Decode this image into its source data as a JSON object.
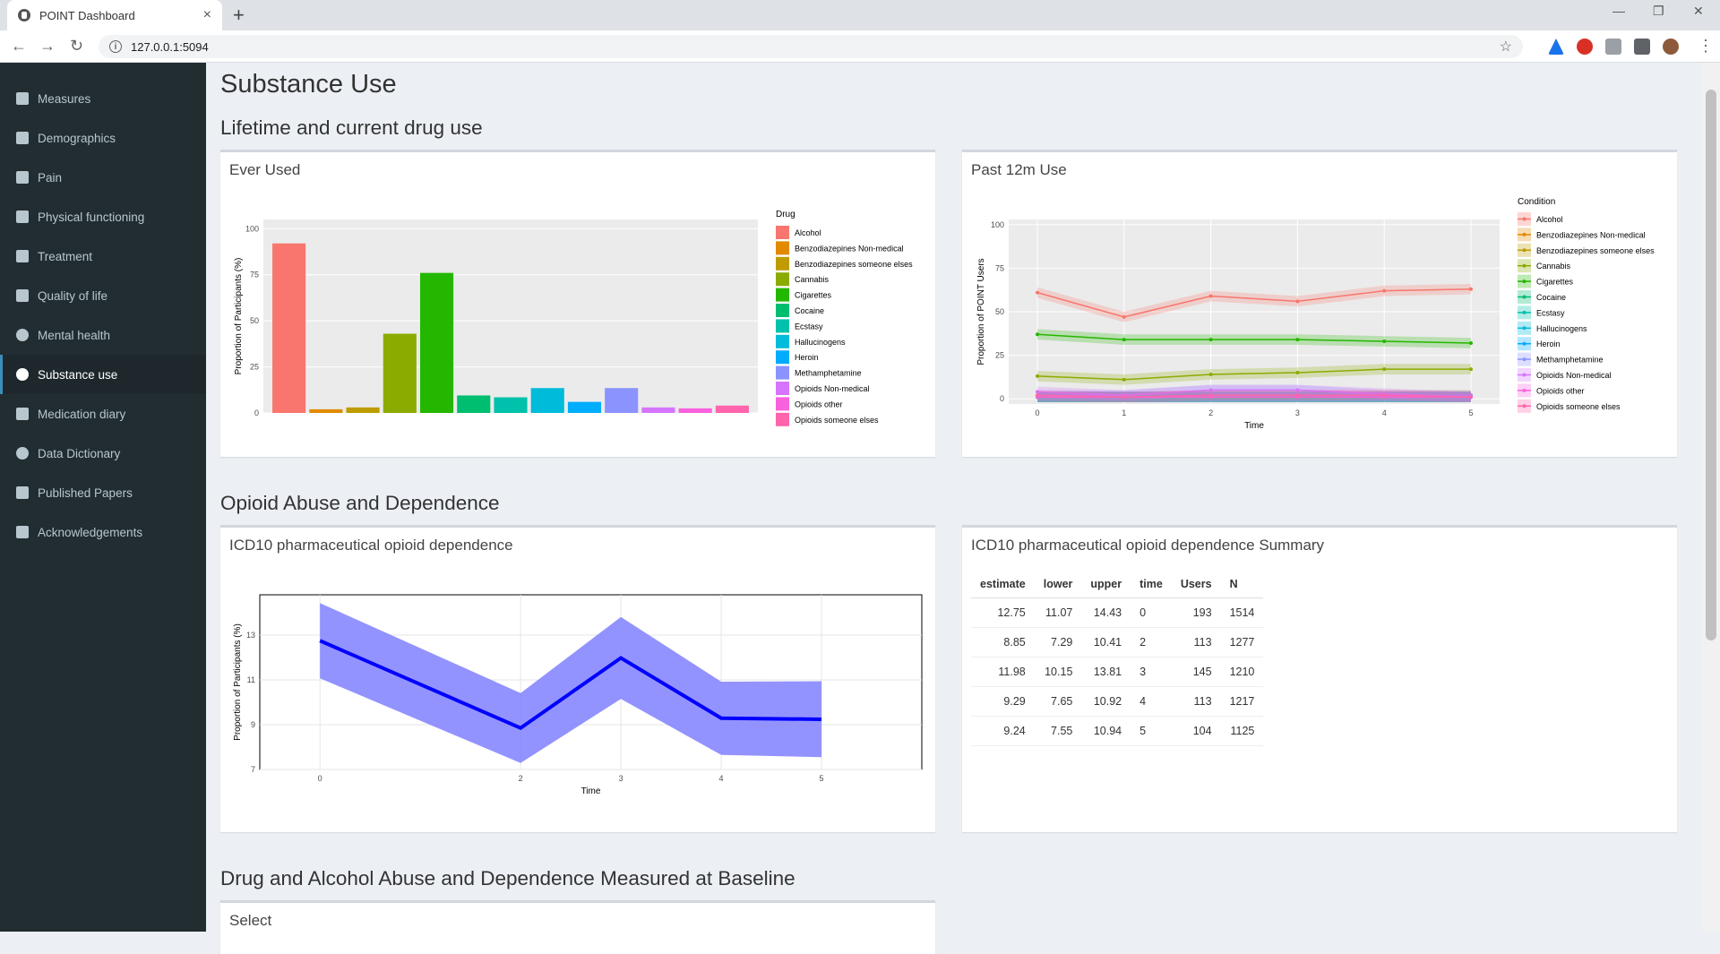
{
  "browser": {
    "tab_title": "POINT Dashboard",
    "url": "127.0.0.1:5094"
  },
  "sidebar": {
    "items": [
      {
        "label": "Measures",
        "icon": "dashboard-icon"
      },
      {
        "label": "Demographics",
        "icon": "id-card-icon"
      },
      {
        "label": "Pain",
        "icon": "heartbeat-icon"
      },
      {
        "label": "Physical functioning",
        "icon": "wheelchair-icon"
      },
      {
        "label": "Treatment",
        "icon": "building-icon"
      },
      {
        "label": "Quality of life",
        "icon": "heart-icon"
      },
      {
        "label": "Mental health",
        "icon": "smile-icon"
      },
      {
        "label": "Substance use",
        "icon": "toggle-icon",
        "active": true
      },
      {
        "label": "Medication diary",
        "icon": "medkit-icon"
      },
      {
        "label": "Data Dictionary",
        "icon": "search-icon"
      },
      {
        "label": "Published Papers",
        "icon": "file-icon"
      },
      {
        "label": "Acknowledgements",
        "icon": "info-icon"
      }
    ]
  },
  "main": {
    "page_title": "Substance Use",
    "section1_title": "Lifetime and current drug use",
    "section2_title": "Opioid Abuse and Dependence",
    "section3_title": "Drug and Alcohol Abuse and Dependence Measured at Baseline",
    "box_ever_used": "Ever Used",
    "box_past12m": "Past 12m Use",
    "box_icd10": "ICD10 pharmaceutical opioid dependence",
    "box_icd10_summary": "ICD10 pharmaceutical opioid dependence Summary",
    "box_select": "Select"
  },
  "summary_table": {
    "headers": [
      "estimate",
      "lower",
      "upper",
      "time",
      "Users",
      "N"
    ],
    "rows": [
      [
        "12.75",
        "11.07",
        "14.43",
        "0",
        "193",
        "1514"
      ],
      [
        "8.85",
        "7.29",
        "10.41",
        "2",
        "113",
        "1277"
      ],
      [
        "11.98",
        "10.15",
        "13.81",
        "3",
        "145",
        "1210"
      ],
      [
        "9.29",
        "7.65",
        "10.92",
        "4",
        "113",
        "1217"
      ],
      [
        "9.24",
        "7.55",
        "10.94",
        "5",
        "104",
        "1125"
      ]
    ]
  },
  "chart_data": [
    {
      "type": "bar",
      "ylabel": "Proportion of Participants (%)",
      "legend_title": "Drug",
      "legend_placement": "right",
      "yticks": [
        "0",
        "25",
        "50",
        "75",
        "100"
      ],
      "ylim": [
        0,
        105
      ],
      "grid": true,
      "categories": [
        "Alcohol",
        "Benzodiazepines Non-medical",
        "Benzodiazepines someone elses",
        "Cannabis",
        "Cigarettes",
        "Cocaine",
        "Ecstasy",
        "Hallucinogens",
        "Heroin",
        "Methamphetamine",
        "Opioids Non-medical",
        "Opioids other",
        "Opioids someone elses"
      ],
      "values": [
        92,
        2,
        3,
        43,
        76,
        9.5,
        8.5,
        13.5,
        6,
        13.5,
        3,
        2.5,
        4
      ],
      "colors": [
        "#F8766D",
        "#E18A00",
        "#BE9C00",
        "#8CAB00",
        "#24B700",
        "#00BE70",
        "#00C1AB",
        "#00BBDA",
        "#00ACFC",
        "#8B93FF",
        "#D575FE",
        "#F962DD",
        "#FF65AC"
      ]
    },
    {
      "type": "line",
      "xlabel": "Time",
      "ylabel": "Proportion of POINT Users",
      "legend_title": "Condition",
      "legend_placement": "right",
      "x": [
        0,
        1,
        2,
        3,
        4,
        5
      ],
      "xticks": [
        "0",
        "1",
        "2",
        "3",
        "4",
        "5"
      ],
      "yticks": [
        "0",
        "25",
        "50",
        "75",
        "100"
      ],
      "ylim": [
        -3,
        103
      ],
      "grid": true,
      "series": [
        {
          "name": "Alcohol",
          "values": [
            61,
            47,
            59,
            56,
            62,
            63
          ],
          "color": "#F8766D"
        },
        {
          "name": "Benzodiazepines Non-medical",
          "values": [
            1,
            1,
            2,
            2,
            2,
            2
          ],
          "color": "#E18A00"
        },
        {
          "name": "Benzodiazepines someone elses",
          "values": [
            1,
            1,
            1,
            1,
            1,
            1
          ],
          "color": "#BE9C00"
        },
        {
          "name": "Cannabis",
          "values": [
            13,
            11,
            14,
            15,
            17,
            17
          ],
          "color": "#8CAB00"
        },
        {
          "name": "Cigarettes",
          "values": [
            37,
            34,
            34,
            34,
            33,
            32
          ],
          "color": "#24B700"
        },
        {
          "name": "Cocaine",
          "values": [
            1,
            1,
            1,
            1,
            1,
            1
          ],
          "color": "#00BE70"
        },
        {
          "name": "Ecstasy",
          "values": [
            1,
            1,
            1,
            1,
            1,
            1
          ],
          "color": "#00C1AB"
        },
        {
          "name": "Hallucinogens",
          "values": [
            1,
            1,
            1,
            1,
            1,
            1
          ],
          "color": "#00BBDA"
        },
        {
          "name": "Heroin",
          "values": [
            1,
            1,
            1,
            1,
            1,
            1
          ],
          "color": "#00ACFC"
        },
        {
          "name": "Methamphetamine",
          "values": [
            2,
            2,
            5,
            5,
            2,
            2
          ],
          "color": "#8B93FF"
        },
        {
          "name": "Opioids Non-medical",
          "values": [
            4,
            2,
            5,
            5,
            3,
            1
          ],
          "color": "#D575FE"
        },
        {
          "name": "Opioids other",
          "values": [
            1,
            1,
            1,
            1,
            1,
            1
          ],
          "color": "#F962DD"
        },
        {
          "name": "Opioids someone elses",
          "values": [
            2,
            1,
            2,
            2,
            2,
            1
          ],
          "color": "#FF65AC"
        }
      ]
    },
    {
      "type": "area",
      "xlabel": "Time",
      "ylabel": "Proportion of Participants (%)",
      "x": [
        0,
        2,
        3,
        4,
        5
      ],
      "xticks": [
        "0",
        "2",
        "3",
        "4",
        "5"
      ],
      "yticks": [
        "7",
        "9",
        "11",
        "13"
      ],
      "xlim": [
        -0.6,
        6.0
      ],
      "ylim": [
        7,
        14.8
      ],
      "grid": true,
      "estimate": [
        12.75,
        8.85,
        11.98,
        9.29,
        9.24
      ],
      "lower": [
        11.07,
        7.29,
        10.15,
        7.65,
        7.55
      ],
      "upper": [
        14.43,
        10.41,
        13.81,
        10.92,
        10.94
      ],
      "line_color": "#0000FF",
      "band_color": "#8080FF"
    }
  ]
}
